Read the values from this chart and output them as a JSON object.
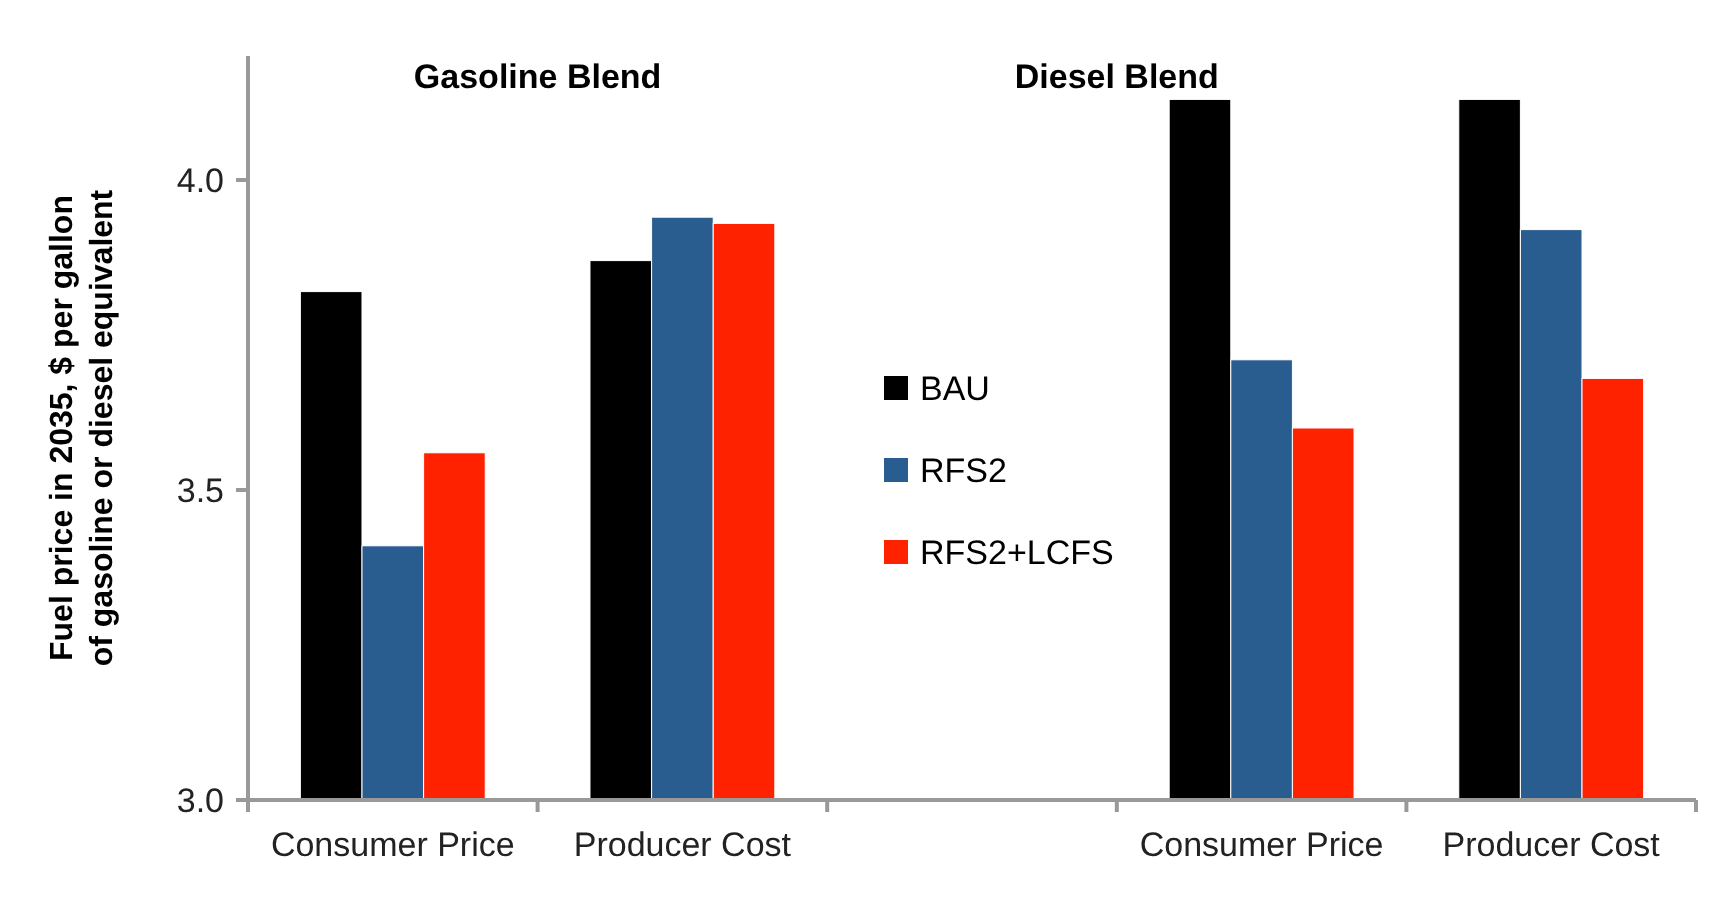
{
  "chart_data": {
    "type": "bar",
    "ylabel": "Fuel price in 2035, $ per gallon of gasoline or diesel equivalent",
    "annotations": [
      "Gasoline Blend",
      "Diesel Blend"
    ],
    "categories": [
      "Consumer Price",
      "Producer Cost",
      null,
      "Consumer Price",
      "Producer Cost"
    ],
    "series": [
      {
        "name": "BAU",
        "color": "#000000",
        "values": [
          3.82,
          3.87,
          null,
          4.13,
          4.13
        ]
      },
      {
        "name": "RFS2",
        "color": "#2a5d8f",
        "values": [
          3.41,
          3.94,
          null,
          3.71,
          3.92
        ]
      },
      {
        "name": "RFS2+LCFS",
        "color": "#ff2200",
        "values": [
          3.56,
          3.93,
          null,
          3.6,
          3.68
        ]
      }
    ],
    "ylim": [
      3,
      4.2
    ],
    "yticks": [
      {
        "value": 3,
        "label": "3.0"
      },
      {
        "value": 3.5,
        "label": "3.5"
      },
      {
        "value": 4,
        "label": "4.0"
      }
    ],
    "legend": "center"
  }
}
